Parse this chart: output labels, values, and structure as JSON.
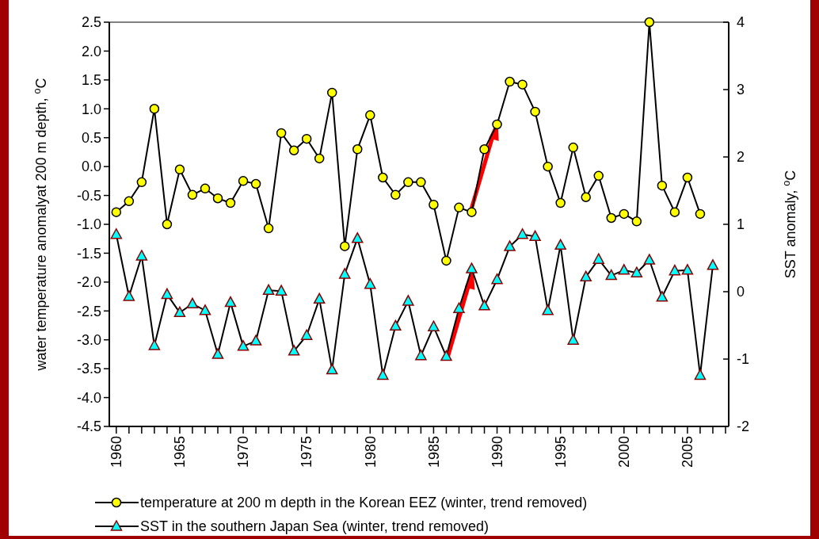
{
  "chart_data": {
    "type": "line",
    "ylabel": "water temperature anomalyat 200 m depth, $^{o}$C",
    "y2label": "SST anomaly, $^{o}$C",
    "xlim": [
      1959.45,
      2008.25
    ],
    "xticks": [
      1960,
      {
        "value": 1961,
        "label": null
      },
      {
        "value": 1962,
        "label": null
      },
      {
        "value": 1963,
        "label": null
      },
      {
        "value": 1964,
        "label": null
      },
      1965,
      {
        "value": 1966,
        "label": null
      },
      {
        "value": 1967,
        "label": null
      },
      {
        "value": 1968,
        "label": null
      },
      {
        "value": 1969,
        "label": null
      },
      1970,
      {
        "value": 1971,
        "label": null
      },
      {
        "value": 1972,
        "label": null
      },
      {
        "value": 1973,
        "label": null
      },
      {
        "value": 1974,
        "label": null
      },
      1975,
      {
        "value": 1976,
        "label": null
      },
      {
        "value": 1977,
        "label": null
      },
      {
        "value": 1978,
        "label": null
      },
      {
        "value": 1979,
        "label": null
      },
      1980,
      {
        "value": 1981,
        "label": null
      },
      {
        "value": 1982,
        "label": null
      },
      {
        "value": 1983,
        "label": null
      },
      {
        "value": 1984,
        "label": null
      },
      1985,
      {
        "value": 1986,
        "label": null
      },
      {
        "value": 1987,
        "label": null
      },
      {
        "value": 1988,
        "label": null
      },
      {
        "value": 1989,
        "label": null
      },
      1990,
      {
        "value": 1991,
        "label": null
      },
      {
        "value": 1992,
        "label": null
      },
      {
        "value": 1993,
        "label": null
      },
      {
        "value": 1994,
        "label": null
      },
      1995,
      {
        "value": 1996,
        "label": null
      },
      {
        "value": 1997,
        "label": null
      },
      {
        "value": 1998,
        "label": null
      },
      {
        "value": 1999,
        "label": null
      },
      2000,
      {
        "value": 2001,
        "label": null
      },
      {
        "value": 2002,
        "label": null
      },
      {
        "value": 2003,
        "label": null
      },
      {
        "value": 2004,
        "label": null
      },
      2005,
      {
        "value": 2006,
        "label": null
      },
      {
        "value": 2007,
        "label": null
      },
      {
        "value": 2008,
        "label": null
      }
    ],
    "ylim": [
      -4.5,
      2.5
    ],
    "yticks": [
      {
        "value": -4.5,
        "label": "-4.5"
      },
      {
        "value": -4,
        "label": "-4.0"
      },
      {
        "value": -3.5,
        "label": "-3.5"
      },
      {
        "value": -3,
        "label": "-3.0"
      },
      {
        "value": -2.5,
        "label": "-2.5"
      },
      {
        "value": -2,
        "label": "-2.0"
      },
      {
        "value": -1.5,
        "label": "-1.5"
      },
      {
        "value": -1,
        "label": "-1.0"
      },
      {
        "value": -0.5,
        "label": "-0.5"
      },
      {
        "value": 0,
        "label": "0.0"
      },
      {
        "value": 0.5,
        "label": "0.5"
      },
      {
        "value": 1,
        "label": "1.0"
      },
      {
        "value": 1.5,
        "label": "1.5"
      },
      {
        "value": 2,
        "label": "2.0"
      },
      {
        "value": 2.5,
        "label": "2.5"
      }
    ],
    "y2lim": [
      -2,
      4
    ],
    "y2ticks": [
      -2,
      -1,
      0,
      1,
      2,
      3,
      4
    ],
    "legend": "bottom",
    "grid": false,
    "series": [
      {
        "name": "temperature at 200 m depth in the Korean EEZ (winter, trend removed)",
        "color": "#ffff00",
        "marker": "circle",
        "x": [
          1960,
          1961,
          1962,
          1963,
          1964,
          1965,
          1966,
          1967,
          1968,
          1969,
          1970,
          1971,
          1972,
          1973,
          1974,
          1975,
          1976,
          1977,
          1978,
          1979,
          1980,
          1981,
          1982,
          1983,
          1984,
          1985,
          1986,
          1987,
          1988,
          1989,
          1990,
          1991,
          1992,
          1993,
          1994,
          1995,
          1996,
          1997,
          1998,
          1999,
          2000,
          2001,
          2002,
          2003,
          2004,
          2005,
          2006
        ],
        "values": [
          -0.79,
          -0.6,
          -0.27,
          1.0,
          -1.0,
          -0.05,
          -0.49,
          -0.38,
          -0.55,
          -0.63,
          -0.25,
          -0.3,
          -1.07,
          0.58,
          0.28,
          0.48,
          0.14,
          1.28,
          -1.38,
          0.3,
          0.89,
          -0.19,
          -0.49,
          -0.27,
          -0.27,
          -0.66,
          -1.63,
          -0.71,
          -0.79,
          0.3,
          0.73,
          1.47,
          1.42,
          0.95,
          0.0,
          -0.63,
          0.33,
          -0.53,
          -0.16,
          -0.89,
          -0.82,
          -0.95,
          2.5,
          -0.33,
          -0.79,
          -0.19,
          -0.82
        ]
      },
      {
        "name": "SST in the southern Japan Sea (winter, trend removed)",
        "color": "#00ffff",
        "marker": "triangle",
        "axis": "y2",
        "x": [
          1960,
          1961,
          1962,
          1963,
          1964,
          1965,
          1966,
          1967,
          1968,
          1969,
          1970,
          1971,
          1972,
          1973,
          1974,
          1975,
          1976,
          1977,
          1978,
          1979,
          1980,
          1981,
          1982,
          1983,
          1984,
          1985,
          1986,
          1987,
          1988,
          1989,
          1990,
          1991,
          1992,
          1993,
          1994,
          1995,
          1996,
          1997,
          1998,
          1999,
          2000,
          2001,
          2002,
          2003,
          2004,
          2005,
          2006,
          2007
        ],
        "values": [
          0.85,
          -0.07,
          0.53,
          -0.8,
          -0.04,
          -0.31,
          -0.18,
          -0.28,
          -0.93,
          -0.16,
          -0.81,
          -0.73,
          0.02,
          0.01,
          -0.88,
          -0.65,
          -0.11,
          -1.16,
          0.26,
          0.79,
          0.11,
          -1.24,
          -0.51,
          -0.14,
          -0.95,
          -0.52,
          -0.96,
          -0.25,
          0.34,
          -0.21,
          0.18,
          0.67,
          0.85,
          0.82,
          -0.28,
          0.69,
          -0.72,
          0.22,
          0.48,
          0.24,
          0.32,
          0.28,
          0.47,
          -0.08,
          0.31,
          0.32,
          -1.24,
          0.39
        ]
      }
    ]
  }
}
